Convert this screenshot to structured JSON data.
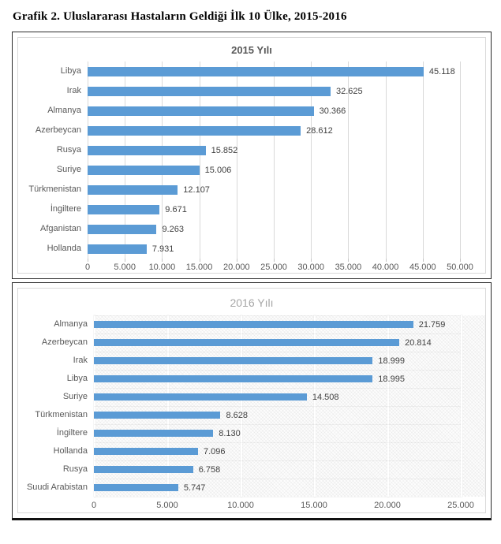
{
  "page_title": "Grafik 2. Uluslararası Hastaların Geldiği İlk 10 Ülke, 2015-2016",
  "colors": {
    "bar": "#5B9BD5",
    "gridline": "#d9d9d9",
    "title_2015": "#595959",
    "title_2016": "#a6a6a6",
    "axis_text": "#595959",
    "value_text": "#404040",
    "panel_border": "#2b2b2b"
  },
  "chart_data": [
    {
      "type": "bar",
      "orientation": "horizontal",
      "title": "2015 Yılı",
      "categories": [
        "Libya",
        "Irak",
        "Almanya",
        "Azerbeycan",
        "Rusya",
        "Suriye",
        "Türkmenistan",
        "İngiltere",
        "Afganistan",
        "Hollanda"
      ],
      "values": [
        45118,
        32625,
        30366,
        28612,
        15852,
        15006,
        12107,
        9671,
        9263,
        7931
      ],
      "value_labels": [
        "45.118",
        "32.625",
        "30.366",
        "28.612",
        "15.852",
        "15.006",
        "12.107",
        "9.671",
        "9.263",
        "7.931"
      ],
      "xlim": [
        0,
        50000
      ],
      "x_tick_step": 5000,
      "x_tick_labels": [
        "0",
        "5.000",
        "10.000",
        "15.000",
        "20.000",
        "25.000",
        "30.000",
        "35.000",
        "40.000",
        "45.000",
        "50.000"
      ],
      "grid": true,
      "legend": false,
      "plot_background": "white"
    },
    {
      "type": "bar",
      "orientation": "horizontal",
      "title": "2016 Yılı",
      "categories": [
        "Almanya",
        "Azerbeycan",
        "Irak",
        "Libya",
        "Suriye",
        "Türkmenistan",
        "İngiltere",
        "Hollanda",
        "Rusya",
        "Suudi Arabistan"
      ],
      "values": [
        21759,
        20814,
        18999,
        18995,
        14508,
        8628,
        8130,
        7096,
        6758,
        5747
      ],
      "value_labels": [
        "21.759",
        "20.814",
        "18.999",
        "18.995",
        "14.508",
        "8.628",
        "8.130",
        "7.096",
        "6.758",
        "5.747"
      ],
      "xlim": [
        0,
        25000
      ],
      "x_tick_step": 5000,
      "x_tick_labels": [
        "0",
        "5.000",
        "10.000",
        "15.000",
        "20.000",
        "25.000"
      ],
      "grid": true,
      "legend": false,
      "plot_background": "textured-hatch"
    }
  ]
}
